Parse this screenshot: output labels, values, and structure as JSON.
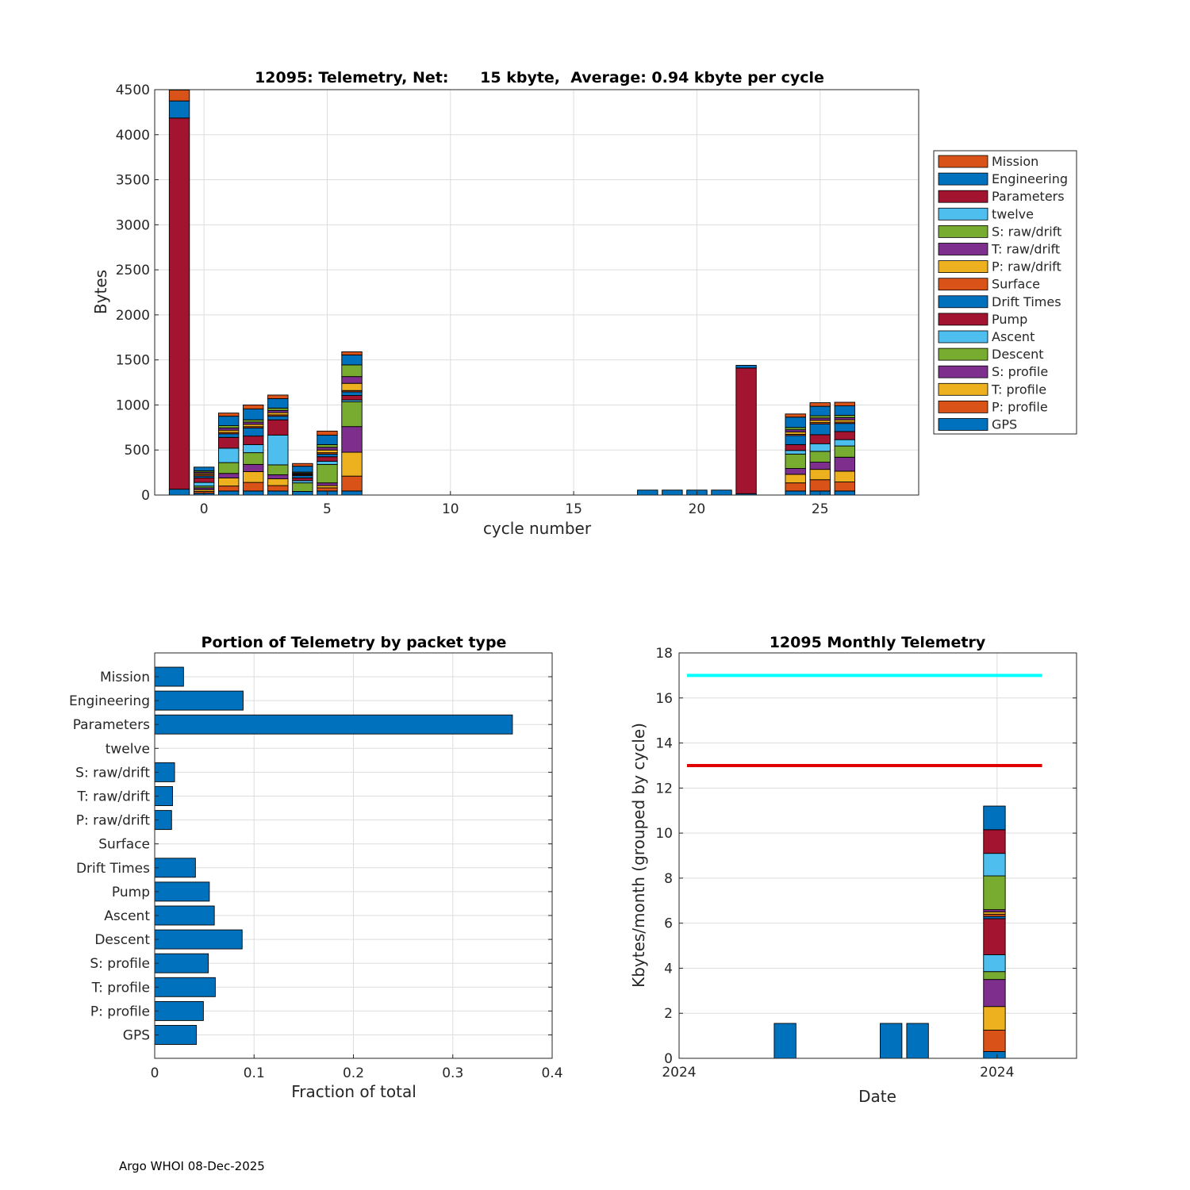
{
  "footer": "Argo WHOI 08-Dec-2025",
  "colors": {
    "grid": "#dddddd",
    "axis": "#262626",
    "bar_blue": "#0072bd",
    "cyan_line": "#00ffff",
    "red_line": "#e00000"
  },
  "chart_data": [
    {
      "id": "telemetry_per_cycle",
      "type": "bar",
      "stacked": true,
      "title": "12095: Telemetry, Net:      15 kbyte,  Average: 0.94 kbyte per cycle",
      "xlabel": "cycle number",
      "ylabel": "Bytes",
      "xlim": [
        -2,
        29
      ],
      "ylim": [
        0,
        4500
      ],
      "xticks": [
        0,
        5,
        10,
        15,
        20,
        25
      ],
      "yticks": [
        0,
        500,
        1000,
        1500,
        2000,
        2500,
        3000,
        3500,
        4000,
        4500
      ],
      "grid": true,
      "legend_position": "outside-right",
      "legend": [
        "Mission",
        "Engineering",
        "Parameters",
        "twelve",
        "S: raw/drift",
        "T: raw/drift",
        "P: raw/drift",
        "Surface",
        "Drift Times",
        "Pump",
        "Ascent",
        "Descent",
        "S: profile",
        "T: profile",
        "P: profile",
        "GPS"
      ],
      "series_order_bottom_to_top": [
        "GPS",
        "P: profile",
        "T: profile",
        "S: profile",
        "Descent",
        "Ascent",
        "Pump",
        "Drift Times",
        "Surface",
        "P: raw/drift",
        "T: raw/drift",
        "S: raw/drift",
        "twelve",
        "Parameters",
        "Engineering",
        "Mission"
      ],
      "series_colors": {
        "GPS": "#0072bd",
        "P: profile": "#d95319",
        "T: profile": "#edb120",
        "S: profile": "#7e2f8e",
        "Descent": "#77ac30",
        "Ascent": "#4dbeee",
        "Pump": "#a2142f",
        "Drift Times": "#0072bd",
        "Surface": "#d95319",
        "P: raw/drift": "#edb120",
        "T: raw/drift": "#7e2f8e",
        "S: raw/drift": "#77ac30",
        "twelve": "#4dbeee",
        "Parameters": "#a2142f",
        "Engineering": "#0072bd",
        "Mission": "#d95319"
      },
      "cycles": [
        {
          "cycle": -1,
          "values": {
            "GPS": 65,
            "Parameters": 4120,
            "Engineering": 190,
            "Mission": 120
          }
        },
        {
          "cycle": 0,
          "values": {
            "GPS": 20,
            "P: profile": 20,
            "T: profile": 20,
            "S: profile": 20,
            "Descent": 20,
            "Ascent": 40,
            "Pump": 50,
            "Drift Times": 20,
            "Surface": 15,
            "P: raw/drift": 15,
            "T: raw/drift": 15,
            "S: raw/drift": 15,
            "Engineering": 40
          }
        },
        {
          "cycle": 1,
          "values": {
            "GPS": 45,
            "P: profile": 55,
            "T: profile": 90,
            "S: profile": 50,
            "Descent": 120,
            "Ascent": 160,
            "Pump": 120,
            "Drift Times": 40,
            "Surface": 15,
            "P: raw/drift": 25,
            "T: raw/drift": 25,
            "S: raw/drift": 25,
            "Engineering": 105,
            "Mission": 35
          }
        },
        {
          "cycle": 2,
          "values": {
            "GPS": 45,
            "P: profile": 95,
            "T: profile": 120,
            "S: profile": 80,
            "Descent": 130,
            "Ascent": 90,
            "Pump": 95,
            "Drift Times": 90,
            "Surface": 15,
            "P: raw/drift": 25,
            "T: raw/drift": 25,
            "S: raw/drift": 25,
            "Engineering": 120,
            "Mission": 45
          }
        },
        {
          "cycle": 3,
          "values": {
            "GPS": 45,
            "P: profile": 60,
            "T: profile": 75,
            "S: profile": 45,
            "Descent": 110,
            "Ascent": 330,
            "Pump": 170,
            "Drift Times": 40,
            "Surface": 15,
            "P: raw/drift": 25,
            "T: raw/drift": 25,
            "S: raw/drift": 25,
            "Engineering": 105,
            "Mission": 40
          }
        },
        {
          "cycle": 4,
          "values": {
            "GPS": 40,
            "Descent": 95,
            "Ascent": 25,
            "Pump": 30,
            "Drift Times": 25,
            "Surface": 10,
            "P: raw/drift": 10,
            "T: raw/drift": 10,
            "S: raw/drift": 10,
            "Engineering": 65,
            "Mission": 30
          }
        },
        {
          "cycle": 5,
          "values": {
            "GPS": 45,
            "P: profile": 35,
            "T: profile": 25,
            "S: profile": 30,
            "Descent": 205,
            "Ascent": 35,
            "Pump": 50,
            "Drift Times": 30,
            "Surface": 15,
            "P: raw/drift": 30,
            "T: raw/drift": 30,
            "S: raw/drift": 30,
            "Engineering": 105,
            "Mission": 45
          }
        },
        {
          "cycle": 6,
          "values": {
            "GPS": 45,
            "P: profile": 165,
            "T: profile": 265,
            "S: profile": 285,
            "Descent": 275,
            "Ascent": 20,
            "Pump": 50,
            "Drift Times": 40,
            "Surface": 15,
            "P: raw/drift": 80,
            "T: raw/drift": 75,
            "S: raw/drift": 130,
            "Engineering": 110,
            "Mission": 35
          }
        },
        {
          "cycle": 18,
          "values": {
            "Engineering": 55
          }
        },
        {
          "cycle": 19,
          "values": {
            "Engineering": 55
          }
        },
        {
          "cycle": 20,
          "values": {
            "Engineering": 55
          }
        },
        {
          "cycle": 21,
          "values": {
            "Engineering": 55
          }
        },
        {
          "cycle": 22,
          "values": {
            "GPS": 15,
            "Parameters": 1395,
            "Engineering": 30
          }
        },
        {
          "cycle": 24,
          "values": {
            "GPS": 45,
            "P: profile": 90,
            "T: profile": 95,
            "S: profile": 65,
            "Descent": 160,
            "Ascent": 40,
            "Pump": 65,
            "Drift Times": 100,
            "Surface": 15,
            "P: raw/drift": 25,
            "T: raw/drift": 25,
            "S: raw/drift": 25,
            "Engineering": 115,
            "Mission": 35
          }
        },
        {
          "cycle": 25,
          "values": {
            "GPS": 45,
            "P: profile": 125,
            "T: profile": 115,
            "S: profile": 80,
            "Descent": 120,
            "Ascent": 85,
            "Pump": 100,
            "Drift Times": 120,
            "Surface": 15,
            "P: raw/drift": 25,
            "T: raw/drift": 25,
            "S: raw/drift": 25,
            "Engineering": 105,
            "Mission": 40
          }
        },
        {
          "cycle": 26,
          "values": {
            "GPS": 45,
            "P: profile": 100,
            "T: profile": 120,
            "S: profile": 155,
            "Descent": 125,
            "Ascent": 70,
            "Pump": 90,
            "Drift Times": 90,
            "Surface": 15,
            "P: raw/drift": 25,
            "T: raw/drift": 25,
            "S: raw/drift": 25,
            "Engineering": 105,
            "Mission": 40
          }
        }
      ]
    },
    {
      "id": "portion_by_packet_type",
      "type": "bar",
      "orientation": "horizontal",
      "title": "Portion of Telemetry by packet type",
      "xlabel": "Fraction of total",
      "ylabel": "",
      "xlim": [
        0,
        0.4
      ],
      "xticks": [
        0,
        0.1,
        0.2,
        0.3,
        0.4
      ],
      "xticklabels": [
        "0",
        "0.1",
        "0.2",
        "0.3",
        "0.4"
      ],
      "grid": true,
      "categories": [
        "Mission",
        "Engineering",
        "Parameters",
        "twelve",
        "S: raw/drift",
        "T: raw/drift",
        "P: raw/drift",
        "Surface",
        "Drift Times",
        "Pump",
        "Ascent",
        "Descent",
        "S: profile",
        "T: profile",
        "P: profile",
        "GPS"
      ],
      "values": [
        0.029,
        0.089,
        0.36,
        0,
        0.02,
        0.018,
        0.017,
        0,
        0.041,
        0.055,
        0.06,
        0.088,
        0.054,
        0.061,
        0.049,
        0.042
      ]
    },
    {
      "id": "monthly_telemetry",
      "type": "bar",
      "stacked": true,
      "title": "12095 Monthly Telemetry",
      "xlabel": "Date",
      "ylabel": "Kbytes/month (grouped by cycle)",
      "xlim": [
        0,
        15
      ],
      "ylim": [
        0,
        18
      ],
      "yticks": [
        0,
        2,
        4,
        6,
        8,
        10,
        12,
        14,
        16,
        18
      ],
      "xticks": [
        0,
        12
      ],
      "xticklabels": [
        "2024",
        "2024"
      ],
      "grid": true,
      "reference_lines": [
        {
          "name": "upper limit",
          "y": 17,
          "x_from": 0.3,
          "x_to": 13.7,
          "color": "#00ffff"
        },
        {
          "name": "lower limit",
          "y": 13,
          "x_from": 0.3,
          "x_to": 13.7,
          "color": "#e00000"
        }
      ],
      "bars": [
        {
          "x": 4,
          "segments": [
            1.55
          ],
          "colors": [
            "#0072bd"
          ]
        },
        {
          "x": 8,
          "segments": [
            1.55
          ],
          "colors": [
            "#0072bd"
          ]
        },
        {
          "x": 9,
          "segments": [
            1.55
          ],
          "colors": [
            "#0072bd"
          ]
        },
        {
          "x": 11.9,
          "segments": [
            0.3,
            0.95,
            1.05,
            1.2,
            0.35,
            0.75,
            1.6,
            0.1,
            0.1,
            0.1,
            0.1,
            1.5,
            1.0,
            1.05,
            1.05
          ],
          "colors": [
            "#0072bd",
            "#d95319",
            "#edb120",
            "#7e2f8e",
            "#77ac30",
            "#4dbeee",
            "#a2142f",
            "#0072bd",
            "#d95319",
            "#edb120",
            "#7e2f8e",
            "#77ac30",
            "#4dbeee",
            "#a2142f",
            "#0072bd"
          ]
        }
      ]
    }
  ]
}
